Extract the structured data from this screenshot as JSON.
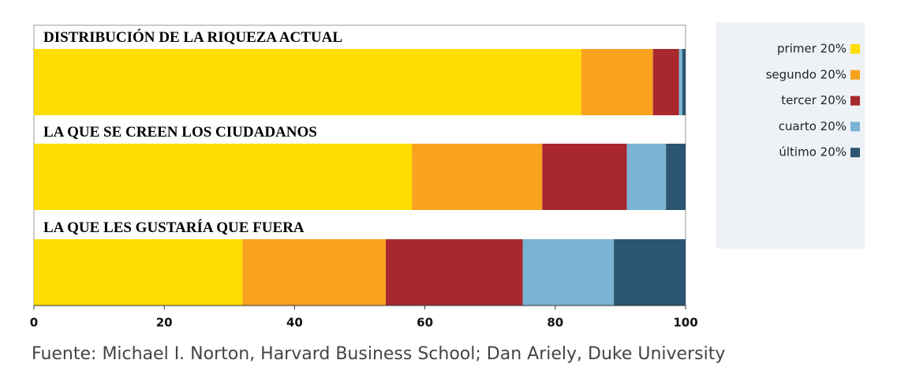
{
  "chart_data": {
    "type": "stacked-bar-horizontal",
    "categories": [
      "DISTRIBUCIÓN DE LA RIQUEZA ACTUAL",
      "LA QUE SE CREEN LOS CIUDADANOS",
      "LA QUE LES GUSTARÍA QUE FUERA"
    ],
    "series": [
      {
        "name": "primer 20%",
        "color": "#ffdd00",
        "values": [
          84,
          58,
          32
        ]
      },
      {
        "name": "segundo 20%",
        "color": "#f8a21e",
        "values": [
          11,
          20,
          22
        ]
      },
      {
        "name": "tercer 20%",
        "color": "#a8282e",
        "values": [
          4,
          13,
          21
        ]
      },
      {
        "name": "cuarto 20%",
        "color": "#7ab3d4",
        "values": [
          0.5,
          6,
          14
        ]
      },
      {
        "name": "último 20%",
        "color": "#2b5570",
        "values": [
          0.5,
          3,
          11
        ]
      }
    ],
    "xlim": [
      0,
      100
    ],
    "xticks": [
      0,
      20,
      40,
      60,
      80,
      100
    ],
    "legend": "right",
    "source": "Fuente: Michael I. Norton, Harvard Business School; Dan Ariely, Duke University"
  }
}
